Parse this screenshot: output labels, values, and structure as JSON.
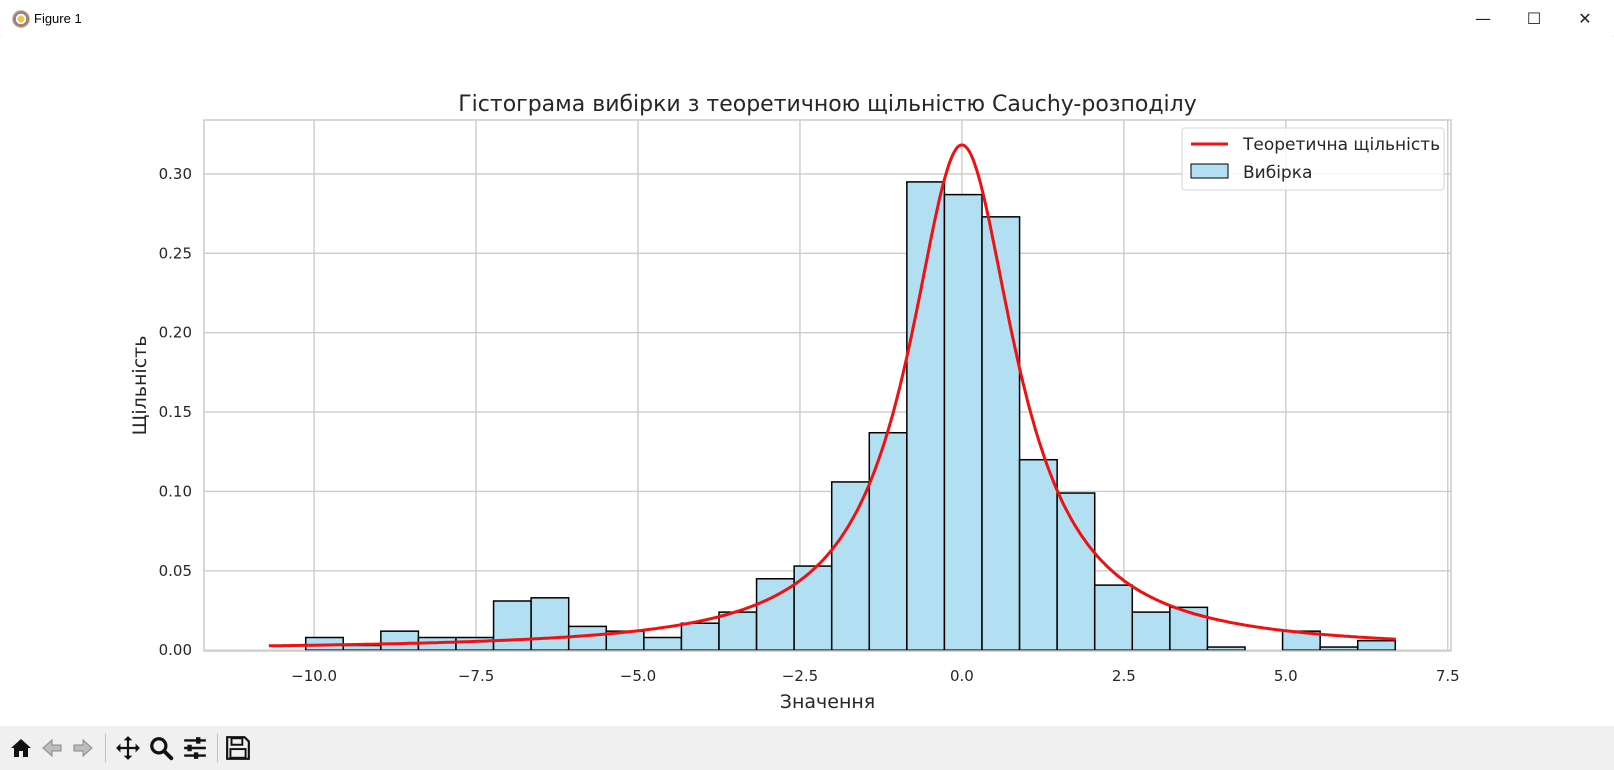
{
  "window": {
    "title": "Figure 1",
    "controls": {
      "minimize": "—",
      "maximize": "☐",
      "close": "✕"
    }
  },
  "toolbar": {
    "tools": [
      {
        "name": "home-button",
        "icon": "home-icon"
      },
      {
        "name": "back-button",
        "icon": "arrow-left-icon"
      },
      {
        "name": "forward-button",
        "icon": "arrow-right-icon"
      },
      {
        "name": "pan-button",
        "icon": "move-icon"
      },
      {
        "name": "zoom-button",
        "icon": "magnifier-icon"
      },
      {
        "name": "configure-subplots-button",
        "icon": "sliders-icon"
      },
      {
        "name": "save-button",
        "icon": "save-icon"
      }
    ]
  },
  "chart_data": {
    "type": "bar",
    "title": "Гістограма вибірки з теоретичною щільністю Cauchy-розподілу",
    "xlabel": "Значення",
    "ylabel": "Щільність",
    "xlim": [
      -11.7,
      7.55
    ],
    "ylim": [
      -0.0005,
      0.334
    ],
    "xticks": [
      -10.0,
      -7.5,
      -5.0,
      -2.5,
      0.0,
      2.5,
      5.0,
      7.5
    ],
    "xtick_labels": [
      "−10.0",
      "−7.5",
      "−5.0",
      "−2.5",
      "0.0",
      "2.5",
      "5.0",
      "7.5"
    ],
    "yticks": [
      0.0,
      0.05,
      0.1,
      0.15,
      0.2,
      0.25,
      0.3
    ],
    "ytick_labels": [
      "0.00",
      "0.05",
      "0.10",
      "0.15",
      "0.20",
      "0.25",
      "0.30"
    ],
    "grid": true,
    "legend_position": "top-right",
    "series": [
      {
        "name": "Вибірка",
        "kind": "histogram",
        "color": "#b3dff2",
        "edgecolor": "#000000",
        "bin_width": 0.58,
        "bins_left": [
          -10.13,
          -9.55,
          -8.97,
          -8.39,
          -7.81,
          -7.23,
          -6.65,
          -6.07,
          -5.49,
          -4.91,
          -4.33,
          -3.75,
          -3.17,
          -2.59,
          -2.01,
          -1.43,
          -0.85,
          -0.27,
          0.31,
          0.89,
          1.47,
          2.05,
          2.63,
          3.21,
          3.79,
          4.37,
          4.95,
          5.53,
          6.11
        ],
        "values": [
          0.008,
          0.003,
          0.012,
          0.008,
          0.008,
          0.031,
          0.033,
          0.015,
          0.012,
          0.008,
          0.017,
          0.024,
          0.045,
          0.053,
          0.106,
          0.137,
          0.295,
          0.287,
          0.273,
          0.12,
          0.099,
          0.041,
          0.024,
          0.027,
          0.002,
          0.0,
          0.012,
          0.002,
          0.006
        ]
      },
      {
        "name": "Теоретична щільність",
        "kind": "line",
        "color": "#ee1111",
        "distribution": "Cauchy",
        "x_range": [
          -10.7,
          6.7
        ]
      }
    ]
  }
}
